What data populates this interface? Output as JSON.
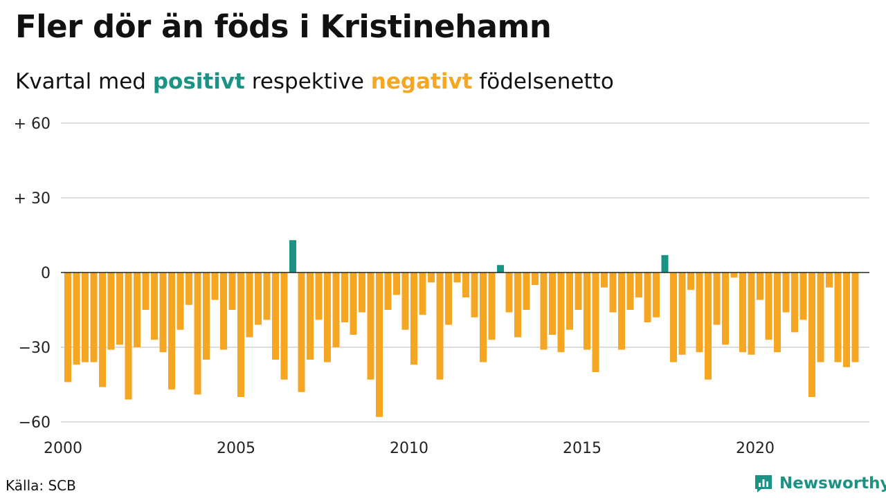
{
  "title": "Fler dör än föds i Kristinehamn",
  "subtitle": {
    "prefix": "Kvartal med",
    "positive_word": "positivt",
    "middle": "respektive",
    "negative_word": "negativt",
    "suffix": "födelsenetto"
  },
  "source": "Källa: SCB",
  "logo_text": "Newsworthy",
  "colors": {
    "positive": "#1a9384",
    "negative": "#f5a623",
    "grid": "#dcdcdc",
    "brand": "#1a9384"
  },
  "chart_data": {
    "type": "bar",
    "x_start": 2000,
    "x_step_label": "quarter",
    "ylim": [
      -60,
      60
    ],
    "y_ticks": [
      {
        "value": 60,
        "label": "+ 60"
      },
      {
        "value": 30,
        "label": "+ 30"
      },
      {
        "value": 0,
        "label": "0"
      },
      {
        "value": -30,
        "label": "−30"
      },
      {
        "value": -60,
        "label": "−60"
      }
    ],
    "x_ticks": [
      "2000",
      "2005",
      "2010",
      "2015",
      "2020"
    ],
    "grid": true,
    "values": [
      -44,
      -37,
      -36,
      -36,
      -46,
      -31,
      -29,
      -51,
      -30,
      -15,
      -27,
      -32,
      -47,
      -23,
      -13,
      -49,
      -35,
      -11,
      -31,
      -15,
      -50,
      -26,
      -21,
      -19,
      -35,
      -43,
      13,
      -48,
      -35,
      -19,
      -36,
      -30,
      -20,
      -25,
      -16,
      -43,
      -58,
      -15,
      -9,
      -23,
      -37,
      -17,
      -4,
      -43,
      -21,
      -4,
      -10,
      -18,
      -36,
      -27,
      3,
      -16,
      -26,
      -15,
      -5,
      -31,
      -25,
      -32,
      -23,
      -15,
      -31,
      -40,
      -6,
      -16,
      -31,
      -15,
      -10,
      -20,
      -18,
      7,
      -36,
      -33,
      -7,
      -32,
      -43,
      -21,
      -29,
      -2,
      -32,
      -33,
      -11,
      -27,
      -32,
      -16,
      -24,
      -19,
      -50,
      -36,
      -6,
      -36,
      -38,
      -36
    ]
  }
}
